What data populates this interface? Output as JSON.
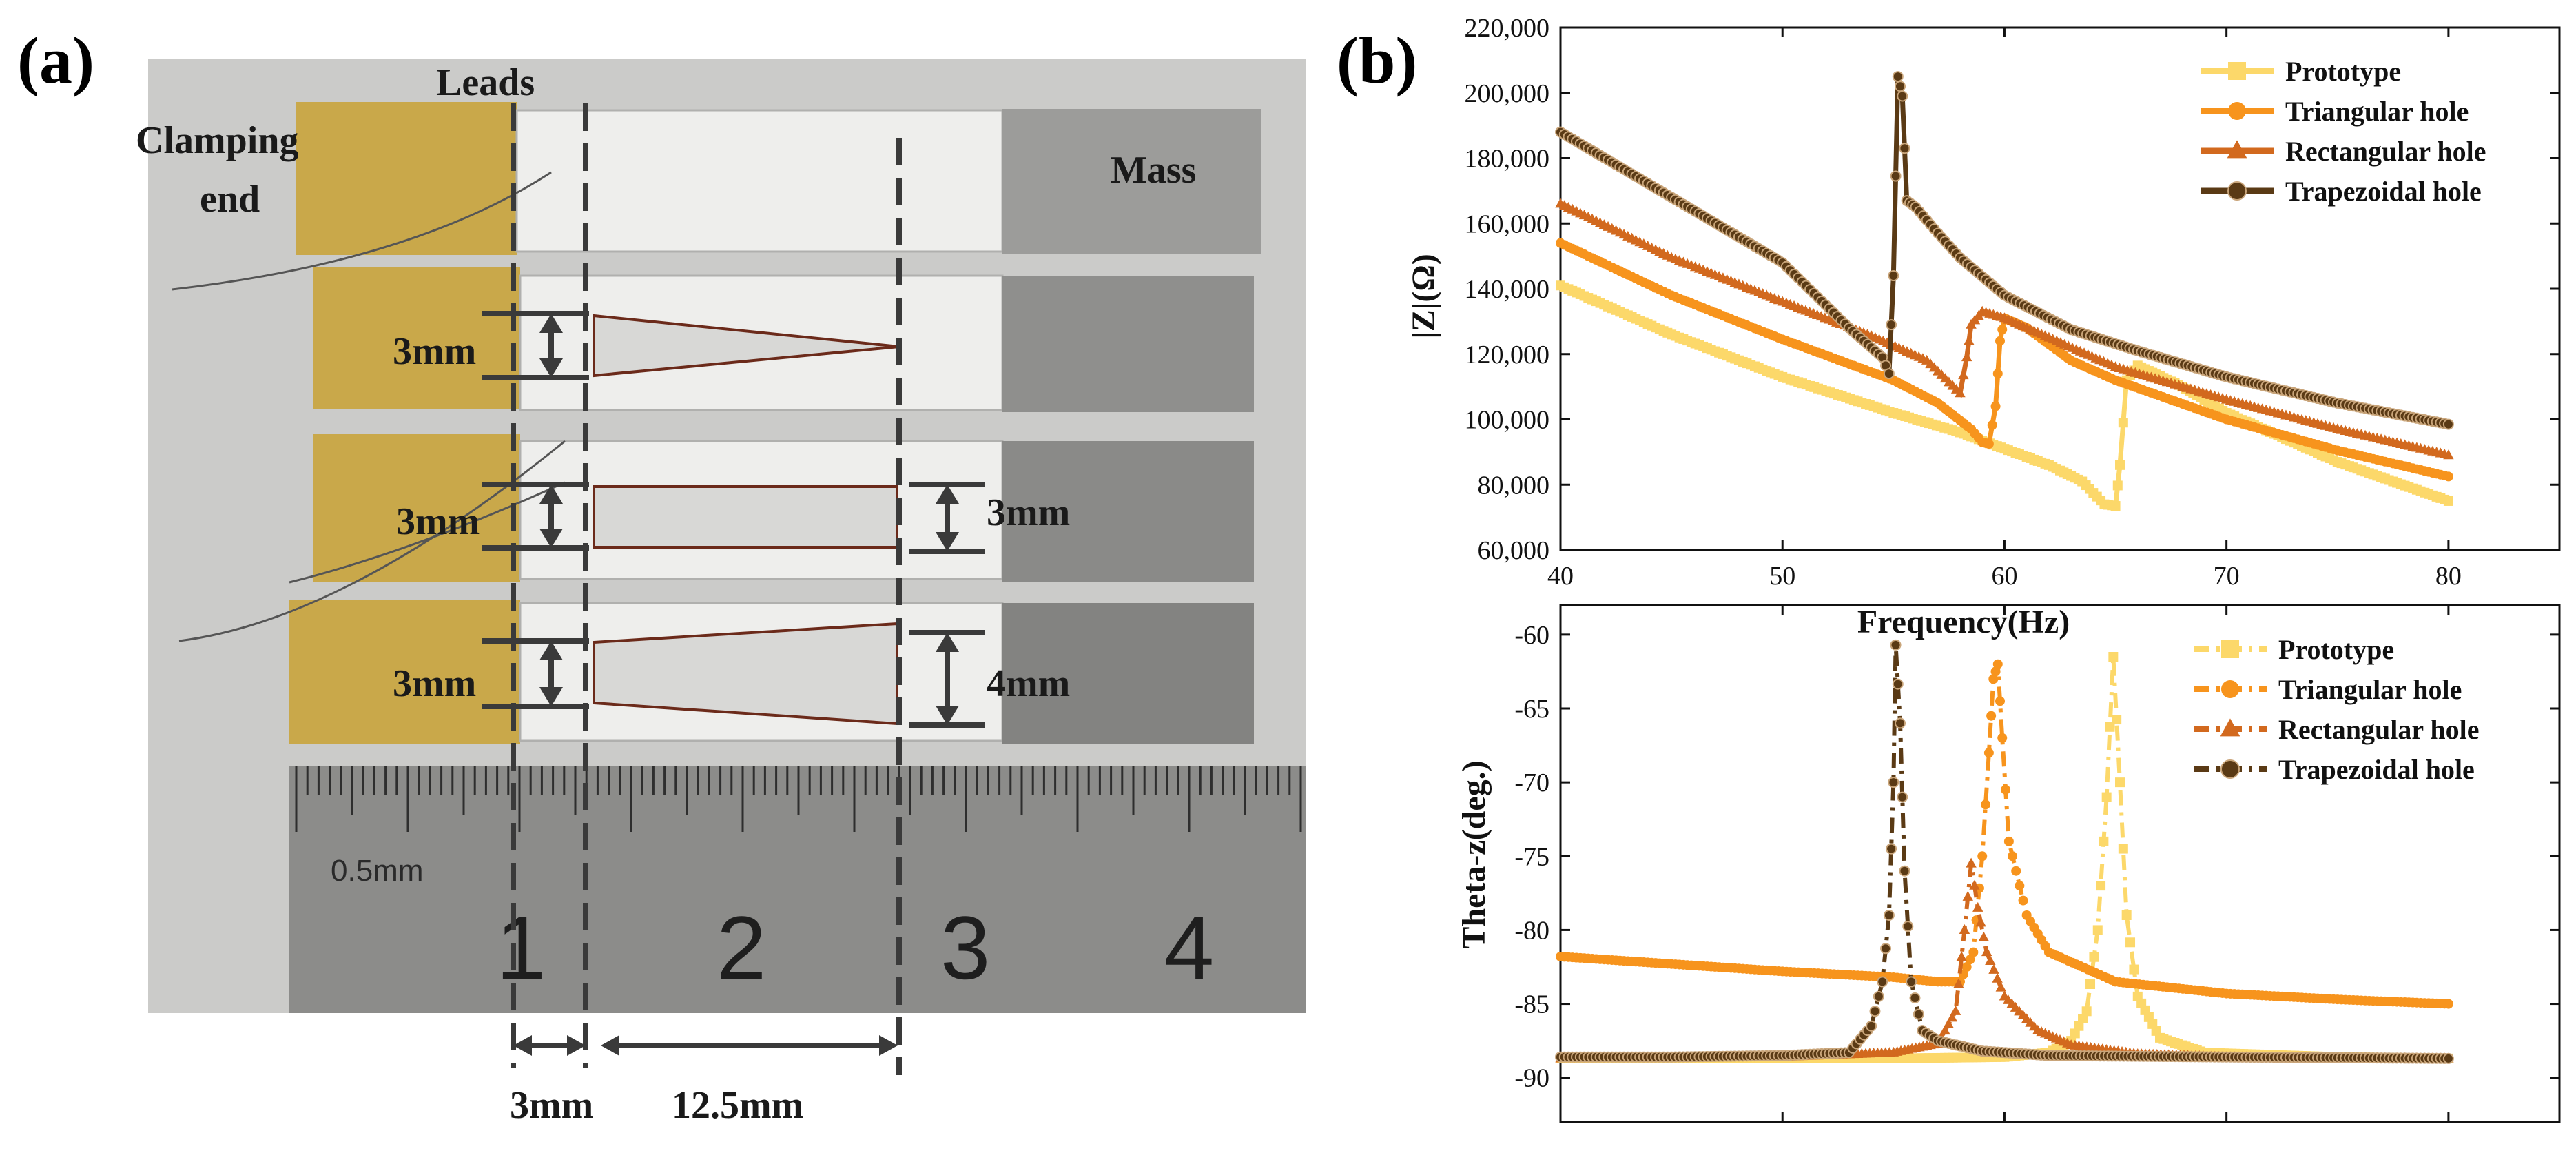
{
  "panel_a": {
    "label": "(a)",
    "annotations": {
      "leads": "Leads",
      "clamping_line1": "Clamping",
      "clamping_line2": "end",
      "mass": "Mass",
      "dim_3mm": "3mm",
      "dim_4mm": "4mm",
      "dim_12_5mm": "12.5mm"
    },
    "ruler": {
      "unit_label": "0.5mm",
      "numbers": [
        "1",
        "2",
        "3",
        "4"
      ]
    },
    "colors": {
      "background": "#c8c8c6",
      "brass": "#c9a84a",
      "beam": "#e9e9e7",
      "mass_block": "#8d8d8b",
      "ruler": "#8a8a88",
      "dash": "#3a3a3a"
    }
  },
  "panel_b": {
    "label": "(b)",
    "colors": {
      "prototype": "#fcd86a",
      "triangular": "#f7941d",
      "rectangular": "#d2691e",
      "trapezoidal": "#5a3a15"
    }
  },
  "chart_data": [
    {
      "type": "line",
      "title": "",
      "xlabel": "Frequency(Hz)",
      "ylabel": "|Z|(Ω)",
      "xlim": [
        40,
        85
      ],
      "ylim": [
        60000,
        220000
      ],
      "xticks": [
        "40",
        "50",
        "60",
        "70",
        "80"
      ],
      "yticks": [
        "60,000",
        "80,000",
        "100,000",
        "120,000",
        "140,000",
        "160,000",
        "180,000",
        "200,000",
        "220,000"
      ],
      "legend_position": "top-right",
      "series": [
        {
          "name": "Prototype",
          "marker": "square",
          "points": [
            [
              40,
              141000
            ],
            [
              45,
              126000
            ],
            [
              50,
              113000
            ],
            [
              55,
              102000
            ],
            [
              58,
              96000
            ],
            [
              60,
              91000
            ],
            [
              62,
              86000
            ],
            [
              63.5,
              81000
            ],
            [
              64.5,
              74000
            ],
            [
              65,
              73500
            ],
            [
              65.2,
              86000
            ],
            [
              65.5,
              112000
            ],
            [
              66,
              116500
            ],
            [
              68,
              110000
            ],
            [
              70,
              102000
            ],
            [
              75,
              87000
            ],
            [
              80,
              75000
            ]
          ]
        },
        {
          "name": "Triangular hole",
          "marker": "circle",
          "points": [
            [
              40,
              154000
            ],
            [
              45,
              138000
            ],
            [
              50,
              124500
            ],
            [
              55,
              112000
            ],
            [
              57,
              105000
            ],
            [
              58.5,
              97000
            ],
            [
              59,
              93000
            ],
            [
              59.3,
              92500
            ],
            [
              59.6,
              104000
            ],
            [
              59.8,
              124000
            ],
            [
              60,
              131000
            ],
            [
              61,
              128000
            ],
            [
              63,
              118000
            ],
            [
              65,
              112000
            ],
            [
              70,
              100000
            ],
            [
              75,
              90500
            ],
            [
              80,
              82500
            ]
          ]
        },
        {
          "name": "Rectangular hole",
          "marker": "triangle",
          "points": [
            [
              40,
              166000
            ],
            [
              45,
              149500
            ],
            [
              50,
              136000
            ],
            [
              54,
              125500
            ],
            [
              56.5,
              118000
            ],
            [
              58,
              108000
            ],
            [
              58.3,
              119000
            ],
            [
              58.5,
              129000
            ],
            [
              59,
              133000
            ],
            [
              60,
              131000
            ],
            [
              62,
              125000
            ],
            [
              65,
              116000
            ],
            [
              70,
              106000
            ],
            [
              75,
              97000
            ],
            [
              80,
              89000
            ]
          ]
        },
        {
          "name": "Trapezoidal hole",
          "marker": "circle",
          "points": [
            [
              40,
              188000
            ],
            [
              45,
              168000
            ],
            [
              50,
              148000
            ],
            [
              53,
              128000
            ],
            [
              54.5,
              119000
            ],
            [
              54.8,
              114000
            ],
            [
              55,
              144000
            ],
            [
              55.2,
              205000
            ],
            [
              55.4,
              199000
            ],
            [
              55.6,
              167000
            ],
            [
              56,
              165000
            ],
            [
              57,
              157000
            ],
            [
              58,
              149500
            ],
            [
              60,
              138000
            ],
            [
              63,
              127500
            ],
            [
              66,
              121000
            ],
            [
              70,
              113000
            ],
            [
              75,
              105000
            ],
            [
              80,
              98500
            ]
          ]
        }
      ]
    },
    {
      "type": "line",
      "title": "",
      "xlabel": "",
      "ylabel": "Theta-z(deg.)",
      "xlim": [
        40,
        85
      ],
      "ylim": [
        -93,
        -58
      ],
      "yticks": [
        "-60",
        "-65",
        "-70",
        "-75",
        "-80",
        "-85",
        "-90"
      ],
      "legend_position": "top-right",
      "series": [
        {
          "name": "Prototype",
          "marker": "square",
          "line_style": "dash-dot",
          "points": [
            [
              40,
              -88.7
            ],
            [
              55,
              -88.7
            ],
            [
              60,
              -88.6
            ],
            [
              62,
              -88.3
            ],
            [
              63,
              -87.5
            ],
            [
              63.7,
              -85.5
            ],
            [
              64.2,
              -80
            ],
            [
              64.6,
              -71
            ],
            [
              64.9,
              -61.5
            ],
            [
              65.2,
              -70
            ],
            [
              65.5,
              -79
            ],
            [
              66,
              -84.5
            ],
            [
              67,
              -87.3
            ],
            [
              69,
              -88.3
            ],
            [
              75,
              -88.6
            ],
            [
              80,
              -88.7
            ]
          ]
        },
        {
          "name": "Triangular hole",
          "marker": "circle",
          "line_style": "dash-dot",
          "points": [
            [
              40,
              -81.8
            ],
            [
              45,
              -82.3
            ],
            [
              50,
              -82.8
            ],
            [
              55,
              -83.2
            ],
            [
              57,
              -83.5
            ],
            [
              58,
              -83.5
            ],
            [
              58.6,
              -81.5
            ],
            [
              59,
              -75
            ],
            [
              59.3,
              -68
            ],
            [
              59.5,
              -63
            ],
            [
              59.7,
              -62
            ],
            [
              59.9,
              -67
            ],
            [
              60.2,
              -74
            ],
            [
              61,
              -79
            ],
            [
              62,
              -81.5
            ],
            [
              65,
              -83.5
            ],
            [
              70,
              -84.3
            ],
            [
              75,
              -84.7
            ],
            [
              80,
              -85
            ]
          ]
        },
        {
          "name": "Rectangular hole",
          "marker": "triangle",
          "line_style": "dash-dot",
          "points": [
            [
              40,
              -88.7
            ],
            [
              50,
              -88.6
            ],
            [
              55,
              -88.3
            ],
            [
              57,
              -87.7
            ],
            [
              57.8,
              -85.5
            ],
            [
              58.2,
              -80
            ],
            [
              58.5,
              -75.5
            ],
            [
              58.8,
              -78.5
            ],
            [
              59.2,
              -81.5
            ],
            [
              60,
              -84.5
            ],
            [
              61.5,
              -86.8
            ],
            [
              63,
              -87.8
            ],
            [
              66,
              -88.4
            ],
            [
              70,
              -88.6
            ],
            [
              80,
              -88.7
            ]
          ]
        },
        {
          "name": "Trapezoidal hole",
          "marker": "circle",
          "line_style": "dash-dot",
          "points": [
            [
              40,
              -88.6
            ],
            [
              45,
              -88.6
            ],
            [
              50,
              -88.5
            ],
            [
              53,
              -88.3
            ],
            [
              54,
              -86.5
            ],
            [
              54.5,
              -83.5
            ],
            [
              54.8,
              -79
            ],
            [
              55,
              -70
            ],
            [
              55.1,
              -60.7
            ],
            [
              55.3,
              -66
            ],
            [
              55.5,
              -76
            ],
            [
              55.8,
              -83.5
            ],
            [
              56.3,
              -86.8
            ],
            [
              57,
              -87.5
            ],
            [
              59,
              -88.2
            ],
            [
              62,
              -88.5
            ],
            [
              70,
              -88.6
            ],
            [
              80,
              -88.7
            ]
          ]
        }
      ]
    }
  ]
}
